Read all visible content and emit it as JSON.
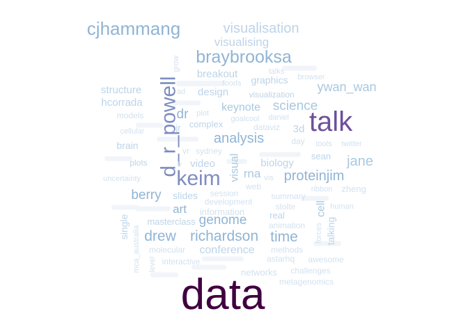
{
  "chart_data": {
    "type": "wordcloud",
    "palette": {
      "level_1": "#400040",
      "level_2": "#6e4f9c",
      "level_3": "#7e8cc0",
      "level_4": "#90b4d4",
      "level_5": "#a8c8e0",
      "level_6": "#bcd4e8",
      "level_7": "#d2e2ef",
      "level_8": "#e2ecf4"
    },
    "words": [
      {
        "text": "data",
        "weight": 100,
        "level": 1,
        "orientation": "horizontal"
      },
      {
        "text": "talk",
        "weight": 54,
        "level": 2,
        "orientation": "horizontal"
      },
      {
        "text": "d_r_powell",
        "weight": 48,
        "level": 3,
        "orientation": "vertical"
      },
      {
        "text": "keim",
        "weight": 44,
        "level": 3,
        "orientation": "horizontal"
      },
      {
        "text": "cjhammang",
        "weight": 40,
        "level": 4,
        "orientation": "horizontal"
      },
      {
        "text": "braybrooksa",
        "weight": 37,
        "level": 4,
        "orientation": "horizontal"
      },
      {
        "text": "visualisation",
        "weight": 30,
        "level": 6,
        "orientation": "horizontal"
      },
      {
        "text": "visualising",
        "weight": 28,
        "level": 6,
        "orientation": "horizontal"
      },
      {
        "text": "ywan_wan",
        "weight": 30,
        "level": 5,
        "orientation": "horizontal"
      },
      {
        "text": "science",
        "weight": 30,
        "level": 5,
        "orientation": "horizontal"
      },
      {
        "text": "analysis",
        "weight": 30,
        "level": 4,
        "orientation": "horizontal"
      },
      {
        "text": "jane",
        "weight": 32,
        "level": 5,
        "orientation": "horizontal"
      },
      {
        "text": "proteinjim",
        "weight": 30,
        "level": 4,
        "orientation": "horizontal"
      },
      {
        "text": "berry",
        "weight": 30,
        "level": 4,
        "orientation": "horizontal"
      },
      {
        "text": "drew",
        "weight": 32,
        "level": 4,
        "orientation": "horizontal"
      },
      {
        "text": "richardson",
        "weight": 32,
        "level": 4,
        "orientation": "horizontal"
      },
      {
        "text": "time",
        "weight": 32,
        "level": 4,
        "orientation": "horizontal"
      },
      {
        "text": "genome",
        "weight": 30,
        "level": 4,
        "orientation": "horizontal"
      },
      {
        "text": "dr",
        "weight": 28,
        "level": 4,
        "orientation": "horizontal"
      },
      {
        "text": "keynote",
        "weight": 24,
        "level": 5,
        "orientation": "horizontal"
      },
      {
        "text": "visual",
        "weight": 24,
        "level": 5,
        "orientation": "vertical"
      },
      {
        "text": "rna",
        "weight": 24,
        "level": 5,
        "orientation": "horizontal"
      },
      {
        "text": "biology",
        "weight": 24,
        "level": 6,
        "orientation": "horizontal"
      },
      {
        "text": "cell",
        "weight": 24,
        "level": 5,
        "orientation": "vertical"
      },
      {
        "text": "art",
        "weight": 24,
        "level": 4,
        "orientation": "horizontal"
      },
      {
        "text": "conference",
        "weight": 22,
        "level": 6,
        "orientation": "horizontal"
      },
      {
        "text": "design",
        "weight": 20,
        "level": 6,
        "orientation": "horizontal"
      },
      {
        "text": "breakout",
        "weight": 20,
        "level": 6,
        "orientation": "horizontal"
      },
      {
        "text": "structure",
        "weight": 20,
        "level": 6,
        "orientation": "horizontal"
      },
      {
        "text": "hcorrada",
        "weight": 20,
        "level": 6,
        "orientation": "horizontal"
      },
      {
        "text": "video",
        "weight": 20,
        "level": 6,
        "orientation": "horizontal"
      },
      {
        "text": "brain",
        "weight": 20,
        "level": 6,
        "orientation": "horizontal"
      },
      {
        "text": "3d",
        "weight": 20,
        "level": 6,
        "orientation": "horizontal"
      },
      {
        "text": "graphics",
        "weight": 18,
        "level": 6,
        "orientation": "horizontal"
      },
      {
        "text": "slides",
        "weight": 18,
        "level": 6,
        "orientation": "horizontal"
      },
      {
        "text": "masterclass",
        "weight": 18,
        "level": 6,
        "orientation": "horizontal"
      },
      {
        "text": "talking",
        "weight": 18,
        "level": 6,
        "orientation": "vertical"
      },
      {
        "text": "single",
        "weight": 18,
        "level": 6,
        "orientation": "vertical"
      },
      {
        "text": "information",
        "weight": 17,
        "level": 7,
        "orientation": "horizontal"
      },
      {
        "text": "real",
        "weight": 17,
        "level": 6,
        "orientation": "horizontal"
      },
      {
        "text": "complex",
        "weight": 17,
        "level": 6,
        "orientation": "horizontal"
      },
      {
        "text": "visualization",
        "weight": 16,
        "level": 6,
        "orientation": "horizontal"
      },
      {
        "text": "jr",
        "weight": 17,
        "level": 6,
        "orientation": "horizontal"
      },
      {
        "text": "sean",
        "weight": 17,
        "level": 6,
        "orientation": "horizontal"
      },
      {
        "text": "day",
        "weight": 17,
        "level": 7,
        "orientation": "horizontal"
      },
      {
        "text": "dataviz",
        "weight": 16,
        "level": 7,
        "orientation": "horizontal"
      },
      {
        "text": "zheng",
        "weight": 16,
        "level": 7,
        "orientation": "horizontal"
      },
      {
        "text": "plots",
        "weight": 16,
        "level": 6,
        "orientation": "horizontal"
      },
      {
        "text": "models",
        "weight": 16,
        "level": 7,
        "orientation": "horizontal"
      },
      {
        "text": "animation",
        "weight": 16,
        "level": 7,
        "orientation": "horizontal"
      },
      {
        "text": "molecular",
        "weight": 16,
        "level": 7,
        "orientation": "horizontal"
      },
      {
        "text": "interactive",
        "weight": 16,
        "level": 7,
        "orientation": "horizontal"
      },
      {
        "text": "networks",
        "weight": 16,
        "level": 7,
        "orientation": "horizontal"
      },
      {
        "text": "challenges",
        "weight": 15,
        "level": 7,
        "orientation": "horizontal"
      },
      {
        "text": "awesome",
        "weight": 15,
        "level": 7,
        "orientation": "horizontal"
      },
      {
        "text": "astarhq",
        "weight": 15,
        "level": 7,
        "orientation": "horizontal"
      },
      {
        "text": "methods",
        "weight": 15,
        "level": 7,
        "orientation": "horizontal"
      },
      {
        "text": "metagenomics",
        "weight": 15,
        "level": 7,
        "orientation": "horizontal"
      },
      {
        "text": "development",
        "weight": 15,
        "level": 7,
        "orientation": "horizontal"
      },
      {
        "text": "summary",
        "weight": 15,
        "level": 7,
        "orientation": "horizontal"
      },
      {
        "text": "stolte",
        "weight": 15,
        "level": 7,
        "orientation": "horizontal"
      },
      {
        "text": "session",
        "weight": 15,
        "level": 7,
        "orientation": "horizontal"
      },
      {
        "text": "web",
        "weight": 15,
        "level": 7,
        "orientation": "horizontal"
      },
      {
        "text": "uncertainty",
        "weight": 14,
        "level": 7,
        "orientation": "horizontal"
      },
      {
        "text": "tools",
        "weight": 14,
        "level": 7,
        "orientation": "horizontal"
      },
      {
        "text": "twitter",
        "weight": 14,
        "level": 7,
        "orientation": "horizontal"
      },
      {
        "text": "sydney",
        "weight": 14,
        "level": 7,
        "orientation": "horizontal"
      },
      {
        "text": "vr",
        "weight": 14,
        "level": 7,
        "orientation": "horizontal"
      },
      {
        "text": "goalcool",
        "weight": 14,
        "level": 7,
        "orientation": "horizontal"
      },
      {
        "text": "daniel",
        "weight": 14,
        "level": 7,
        "orientation": "horizontal"
      },
      {
        "text": "foods",
        "weight": 14,
        "level": 7,
        "orientation": "horizontal"
      },
      {
        "text": "talks",
        "weight": 14,
        "level": 7,
        "orientation": "horizontal"
      },
      {
        "text": "browser",
        "weight": 14,
        "level": 7,
        "orientation": "horizontal"
      },
      {
        "text": "ribbon",
        "weight": 14,
        "level": 7,
        "orientation": "horizontal"
      },
      {
        "text": "human",
        "weight": 14,
        "level": 7,
        "orientation": "horizontal"
      },
      {
        "text": "cellular",
        "weight": 14,
        "level": 7,
        "orientation": "horizontal"
      },
      {
        "text": "plot",
        "weight": 14,
        "level": 7,
        "orientation": "horizontal"
      },
      {
        "text": "ad",
        "weight": 14,
        "level": 7,
        "orientation": "horizontal"
      },
      {
        "text": "vis",
        "weight": 13,
        "level": 7,
        "orientation": "horizontal"
      },
      {
        "text": "lr",
        "weight": 13,
        "level": 7,
        "orientation": "horizontal"
      },
      {
        "text": "grow",
        "weight": 13,
        "level": 7,
        "orientation": "vertical"
      },
      {
        "text": "forces",
        "weight": 13,
        "level": 7,
        "orientation": "vertical"
      },
      {
        "text": "level",
        "weight": 13,
        "level": 7,
        "orientation": "vertical"
      },
      {
        "text": "mca_australia",
        "weight": 13,
        "level": 7,
        "orientation": "vertical"
      }
    ]
  }
}
